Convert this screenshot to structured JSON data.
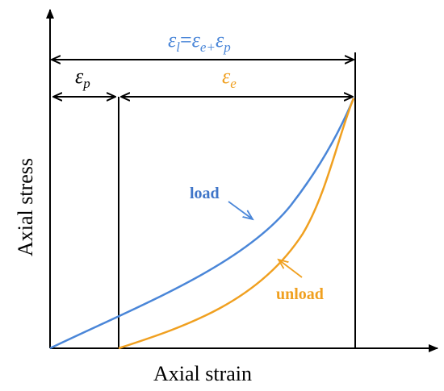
{
  "axes": {
    "x_label": "Axial strain",
    "y_label": "Axial stress"
  },
  "annotations": {
    "total_strain": {
      "eps": "ε",
      "sub_l": "l",
      "equals": "=",
      "sub_e_plus": "e+",
      "sub_p": "p"
    },
    "plastic_strain": {
      "eps": "ε",
      "sub": "p"
    },
    "elastic_strain": {
      "eps": "ε",
      "sub": "e"
    }
  },
  "curves": [
    {
      "name": "load",
      "label": "load",
      "color": "#4A86D8"
    },
    {
      "name": "unload",
      "label": "unload",
      "color": "#F0A020"
    }
  ],
  "colors": {
    "axis": "#000000",
    "load": "#4A86D8",
    "unload": "#F0A020",
    "total_strain_text": "#4A86D8",
    "elastic_strain_text": "#F0A020",
    "plastic_strain_text": "#000000"
  }
}
